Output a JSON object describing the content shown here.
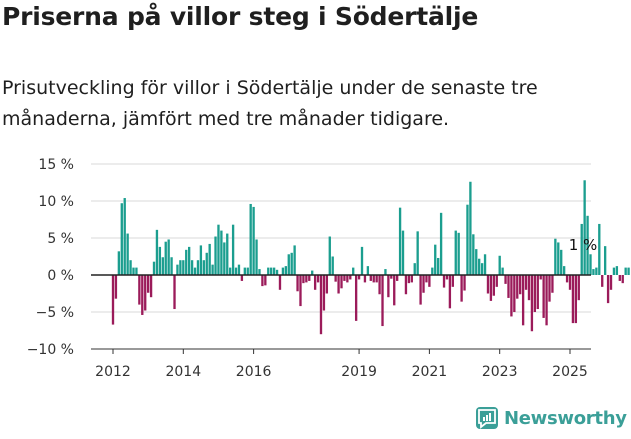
{
  "title": "Priserna på villor steg i Södertälje",
  "subtitle": "Prisutveckling för villor i Södertälje under de senaste tre månaderna, jämfört med tre månader tidigare.",
  "brand": {
    "name": "Newsworthy",
    "color": "#3b9f98"
  },
  "colors": {
    "positive": "#1b9e8f",
    "negative": "#9b1b5a",
    "baseline": "#222222",
    "grid": "#d9d9d9"
  },
  "chart_data": {
    "type": "bar",
    "title": "",
    "xlabel": "",
    "ylabel": "",
    "ylim": [
      -10,
      15
    ],
    "yticks": [
      15,
      10,
      5,
      0,
      -5,
      -10
    ],
    "ytick_labels": [
      "15 %",
      "10 %",
      "5 %",
      "0 %",
      "−5 %",
      "−10 %"
    ],
    "xticks": [
      {
        "label": "2012",
        "x": 2012.0
      },
      {
        "label": "2014",
        "x": 2014.0
      },
      {
        "label": "2016",
        "x": 2016.0
      },
      {
        "label": "2019",
        "x": 2019.0
      },
      {
        "label": "2021",
        "x": 2021.0
      },
      {
        "label": "2023",
        "x": 2023.0
      },
      {
        "label": "2025",
        "x": 2025.0
      }
    ],
    "x_start": 2012.0,
    "x_step": 0.0833333,
    "values": [
      -6.7,
      -3.2,
      3.2,
      9.7,
      10.4,
      5.6,
      2.0,
      1.0,
      1.0,
      -4.0,
      -5.4,
      -4.8,
      -2.4,
      -3.0,
      1.8,
      6.1,
      3.8,
      2.4,
      4.5,
      4.8,
      2.4,
      -4.6,
      1.4,
      2.0,
      2.0,
      3.4,
      3.8,
      2.0,
      1.0,
      2.0,
      4.0,
      2.0,
      3.0,
      4.2,
      1.4,
      5.2,
      6.8,
      6.0,
      4.4,
      5.6,
      1.0,
      6.8,
      1.0,
      1.4,
      -0.8,
      1.0,
      1.0,
      9.6,
      9.2,
      4.8,
      0.8,
      -1.5,
      -1.4,
      1.0,
      1.0,
      1.0,
      0.7,
      -2.0,
      1.0,
      1.2,
      2.8,
      3.0,
      4.0,
      -2.2,
      -4.2,
      -1.1,
      -1.0,
      -0.8,
      0.6,
      -2.0,
      -1.0,
      -8.0,
      -4.8,
      -2.5,
      5.2,
      2.5,
      -0.9,
      -2.5,
      -1.8,
      -0.8,
      -1.0,
      -0.6,
      1.0,
      -6.2,
      -0.6,
      3.8,
      -1.0,
      1.2,
      -0.8,
      -1.0,
      -1.0,
      -2.6,
      -6.9,
      0.8,
      -3.0,
      -0.5,
      -4.1,
      -0.8,
      9.1,
      6.0,
      -2.6,
      -1.1,
      -1.0,
      1.6,
      5.9,
      -4.0,
      -2.4,
      -1.0,
      -1.6,
      1.0,
      4.1,
      2.3,
      8.4,
      -1.7,
      -0.6,
      -4.5,
      -1.6,
      6.0,
      5.7,
      -3.6,
      -2.1,
      9.5,
      12.6,
      5.5,
      3.5,
      2.2,
      1.6,
      2.8,
      -2.5,
      -3.5,
      -2.8,
      -1.6,
      2.6,
      1.0,
      -1.2,
      -3.1,
      -5.6,
      -5.0,
      -3.2,
      -2.6,
      -6.8,
      -2.0,
      -3.4,
      -7.6,
      -5.0,
      -4.6,
      -0.6,
      -5.8,
      -6.8,
      -3.6,
      -2.4,
      4.9,
      4.4,
      3.4,
      1.2,
      -1.0,
      -2.0,
      -6.5,
      -6.5,
      -3.4,
      6.9,
      12.8,
      8.0,
      2.8,
      0.8,
      1.0,
      6.9,
      -1.6,
      3.9,
      -3.8,
      -2.0,
      1.0,
      1.2,
      -0.8,
      -1.1,
      1.0,
      1.0
    ],
    "annotation": {
      "text": "1 %"
    }
  }
}
